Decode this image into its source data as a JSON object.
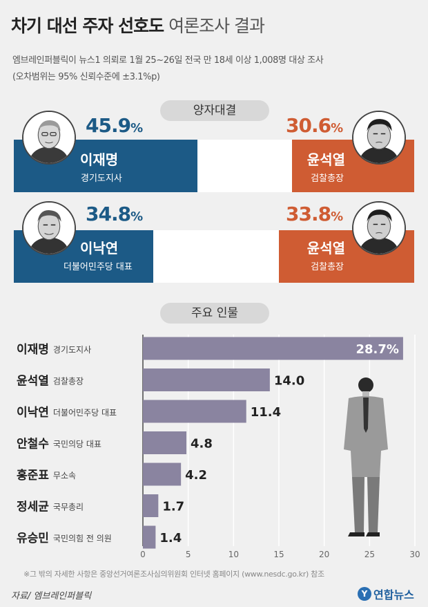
{
  "title": {
    "bold": "차기 대선 주자 선호도",
    "light": "여론조사 결과"
  },
  "subtitle_lines": [
    "엠브레인퍼블릭이 뉴스1 의뢰로 1월 25~26일 전국 만 18세 이상 1,008명 대상 조사",
    "(오차범위는 95% 신뢰수준에 ±3.1%p)"
  ],
  "section_headers": {
    "matchup": "양자대결",
    "figures": "주요 인물"
  },
  "matchups": [
    {
      "left": {
        "name": "이재명",
        "role": "경기도지사",
        "value": 45.9,
        "value_text": "45.9"
      },
      "right": {
        "name": "윤석열",
        "role": "검찰총장",
        "value": 30.6,
        "value_text": "30.6"
      }
    },
    {
      "left": {
        "name": "이낙연",
        "role": "더불어민주당 대표",
        "value": 34.8,
        "value_text": "34.8"
      },
      "right": {
        "name": "윤석열",
        "role": "검찰총장",
        "value": 33.8,
        "value_text": "33.8"
      }
    }
  ],
  "percent_sign": "%",
  "colors": {
    "left_bar": "#1c5a86",
    "right_bar": "#cf5c33",
    "figure_bar": "#8a84a0",
    "grid": "#ffffff"
  },
  "chart_data": {
    "type": "bar",
    "orientation": "horizontal",
    "categories": [
      "이재명",
      "윤석열",
      "이낙연",
      "안철수",
      "홍준표",
      "정세균",
      "유승민"
    ],
    "roles": [
      "경기도지사",
      "검찰총장",
      "더불어민주당 대표",
      "국민의당 대표",
      "무소속",
      "국무총리",
      "국민의힘 전 의원"
    ],
    "values": [
      28.7,
      14.0,
      11.4,
      4.8,
      4.2,
      1.7,
      1.4
    ],
    "value_labels": [
      "28.7%",
      "14.0",
      "11.4",
      "4.8",
      "4.2",
      "1.7",
      "1.4"
    ],
    "xlim": [
      0,
      30
    ],
    "xticks": [
      0,
      5,
      10,
      15,
      20,
      25,
      30
    ],
    "grid": true
  },
  "footnote": "※그 밖의 자세한 사항은 중앙선거여론조사심의위원회 인터넷 홈페이지 (www.nesdc.go.kr) 참조",
  "source": "자료/ 엠브레인퍼블릭",
  "logo": {
    "mark": "Y",
    "text": "연합뉴스"
  }
}
